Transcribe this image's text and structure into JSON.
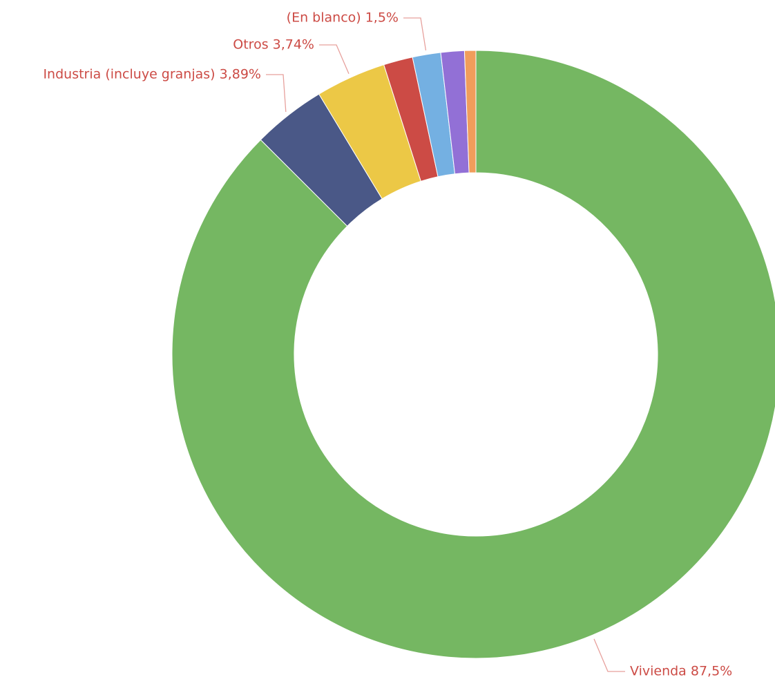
{
  "chart_data": {
    "type": "pie",
    "donut": true,
    "title": "",
    "slices": [
      {
        "label": "Vivienda",
        "value": 87.5,
        "value_text": "87,5%",
        "color": "#75b762",
        "show_label": true
      },
      {
        "label": "Industria (incluye granjas)",
        "value": 3.89,
        "value_text": "3,89%",
        "color": "#4a5887",
        "show_label": true
      },
      {
        "label": "Otros",
        "value": 3.74,
        "value_text": "3,74%",
        "color": "#ecc846",
        "show_label": true
      },
      {
        "label": "",
        "value": 1.55,
        "value_text": "",
        "color": "#cc4b45",
        "show_label": false
      },
      {
        "label": "(En blanco)",
        "value": 1.5,
        "value_text": "1,5%",
        "color": "#74b0e2",
        "show_label": true
      },
      {
        "label": "",
        "value": 1.25,
        "value_text": "",
        "color": "#9270d6",
        "show_label": false
      },
      {
        "label": "",
        "value": 0.6,
        "value_text": "",
        "color": "#f09d5b",
        "show_label": false
      }
    ],
    "label_color": "#cc4b45",
    "leader_color": "#e7a09c",
    "legend": "none"
  }
}
